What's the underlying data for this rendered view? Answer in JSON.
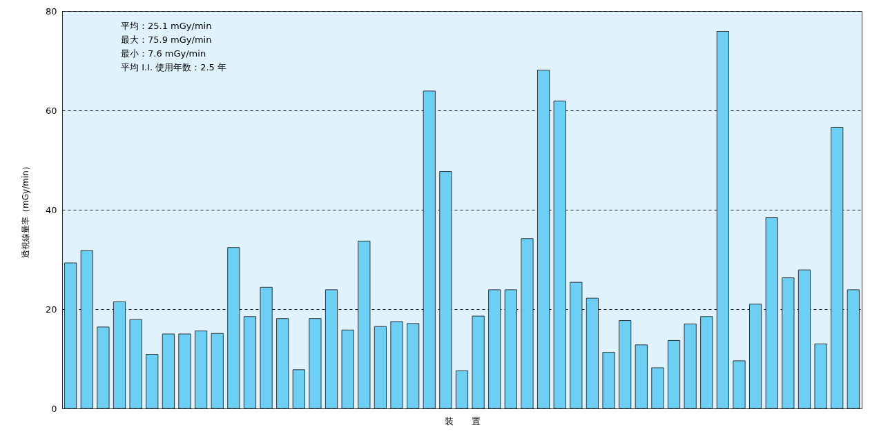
{
  "chart_data": {
    "type": "bar",
    "xlabel": "装　　置",
    "ylabel": "透視線量率（mGy/min）",
    "categories": [
      null,
      null,
      null,
      null,
      null,
      null,
      null,
      null,
      null,
      null,
      null,
      null,
      null,
      null,
      null,
      null,
      null,
      null,
      null,
      null,
      null,
      null,
      null,
      null,
      null,
      null,
      null,
      null,
      null,
      null,
      null,
      null,
      null,
      null,
      null,
      null,
      null,
      null,
      null,
      null,
      null,
      null,
      null,
      null,
      null,
      null,
      null,
      null,
      null
    ],
    "values": [
      29.3,
      31.8,
      16.4,
      21.5,
      17.9,
      10.9,
      15.0,
      15.0,
      15.6,
      15.1,
      32.4,
      18.5,
      24.4,
      18.1,
      7.8,
      18.1,
      23.9,
      15.8,
      33.7,
      16.5,
      17.5,
      17.1,
      63.9,
      47.7,
      7.6,
      18.6,
      23.9,
      23.9,
      34.2,
      68.1,
      61.9,
      25.4,
      22.2,
      11.3,
      17.7,
      12.8,
      8.2,
      13.7,
      17.0,
      18.5,
      75.9,
      9.6,
      21.0,
      38.4,
      26.3,
      27.9,
      13.0,
      56.6,
      23.9
    ],
    "color": "#6ecff5",
    "ylim": [
      0,
      80
    ],
    "yticks": [
      0,
      20,
      40,
      60,
      80
    ],
    "grid": "y",
    "tick_labels": "y",
    "annotations": [
      "平均：25.1 mGy/min",
      "最大：75.9 mGy/min",
      "最小：7.6 mGy/min",
      "平均 I.I. 使用年数：2.5 年"
    ]
  }
}
